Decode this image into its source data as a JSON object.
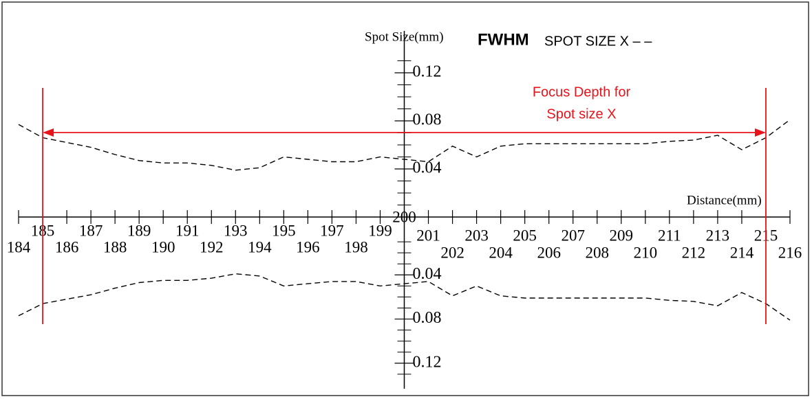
{
  "chart_data": {
    "type": "line",
    "y_title": "Spot Size(mm)",
    "title_bold": "FWHM",
    "title": "SPOT SIZE X – –",
    "x_title": "Distance(mm)",
    "annotation": [
      "Focus Depth for",
      "Spot size X"
    ],
    "focus_depth": [
      185,
      215
    ],
    "annotation_color": "#e8131b",
    "x": [
      184,
      185,
      186,
      187,
      188,
      189,
      190,
      191,
      192,
      193,
      194,
      195,
      196,
      197,
      198,
      199,
      200,
      201,
      202,
      203,
      204,
      205,
      206,
      207,
      208,
      209,
      210,
      211,
      212,
      213,
      214,
      215,
      216
    ],
    "series": [
      {
        "name": "SPOT SIZE X",
        "color": "#000000",
        "values": [
          0.077,
          0.066,
          0.062,
          0.058,
          0.052,
          0.047,
          0.045,
          0.045,
          0.043,
          0.039,
          0.041,
          0.05,
          0.048,
          0.046,
          0.046,
          0.05,
          0.048,
          0.046,
          0.059,
          0.05,
          0.059,
          0.061,
          0.061,
          0.061,
          0.061,
          0.061,
          0.061,
          0.063,
          0.064,
          0.068,
          0.056,
          0.066,
          0.081
        ]
      }
    ],
    "xlim": [
      184,
      216
    ],
    "xticks": [
      184,
      185,
      186,
      187,
      188,
      189,
      190,
      191,
      192,
      193,
      194,
      195,
      196,
      197,
      198,
      199,
      200,
      201,
      202,
      203,
      204,
      205,
      206,
      207,
      208,
      209,
      210,
      211,
      212,
      213,
      214,
      215,
      216
    ],
    "ylim": [
      0,
      0.14
    ],
    "yticks": [
      0.04,
      0.08,
      0.12
    ],
    "yminor": [
      0.01,
      0.02,
      0.03,
      0.05,
      0.06,
      0.07,
      0.09,
      0.1,
      0.11,
      0.13
    ],
    "mirrored": true
  }
}
